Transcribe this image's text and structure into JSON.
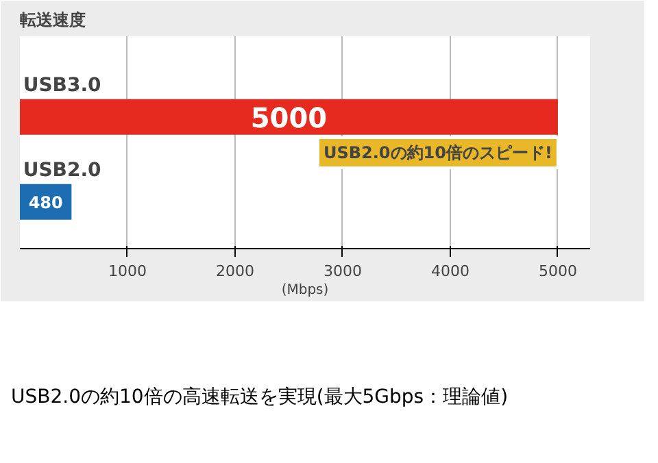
{
  "chart_data": {
    "type": "bar",
    "orientation": "horizontal",
    "title": "転送速度",
    "xlabel": "(Mbps)",
    "categories": [
      "USB3.0",
      "USB2.0"
    ],
    "values": [
      5000,
      480
    ],
    "colors": [
      "#e62a1f",
      "#1d6db3"
    ],
    "xlim": [
      0,
      5300
    ],
    "xticks": [
      1000,
      2000,
      3000,
      4000,
      5000
    ],
    "grid": "x",
    "data_labels": true,
    "annotations": [
      {
        "text": "USB2.0の約10倍のスピード!",
        "x": 5000,
        "y": "USB3.0"
      },
      "USB2.0の約10倍の高速転送を実現(最大5Gbps：理論値)"
    ]
  }
}
